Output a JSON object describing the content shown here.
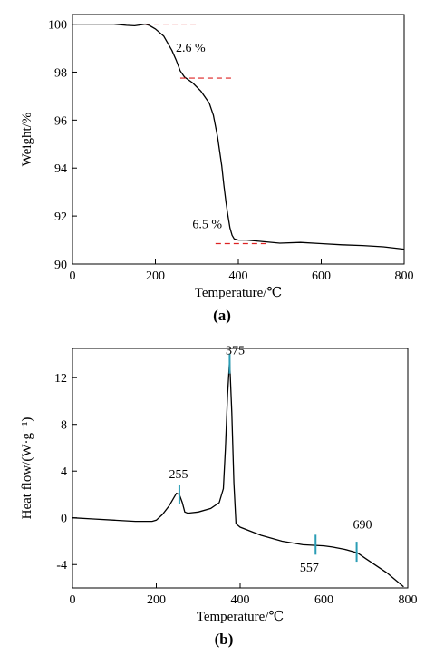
{
  "chart_data": [
    {
      "type": "line",
      "panel_label": "(a)",
      "xlabel": "Temperature/℃",
      "ylabel": "Weight/%",
      "xlim": [
        0,
        800
      ],
      "ylim": [
        90,
        100.4
      ],
      "xticks": [
        0,
        200,
        400,
        600,
        800
      ],
      "yticks": [
        90,
        92,
        94,
        96,
        98,
        100
      ],
      "grid": false,
      "line_color": "#000000",
      "series": [
        {
          "x": [
            0,
            50,
            100,
            130,
            150,
            165,
            175,
            185,
            200,
            220,
            240,
            250,
            260,
            270,
            290,
            310,
            330,
            340,
            350,
            360,
            365,
            370,
            375,
            380,
            385,
            390,
            400,
            420,
            450,
            500,
            550,
            600,
            650,
            700,
            750,
            800
          ],
          "y": [
            100,
            100,
            100,
            99.95,
            99.93,
            99.97,
            100,
            99.95,
            99.8,
            99.5,
            98.9,
            98.5,
            98.05,
            97.8,
            97.55,
            97.2,
            96.7,
            96.2,
            95.3,
            94.1,
            93.3,
            92.6,
            92.0,
            91.5,
            91.2,
            91.05,
            91.0,
            91.0,
            90.95,
            90.87,
            90.9,
            90.85,
            90.8,
            90.77,
            90.72,
            90.62
          ]
        }
      ],
      "markers": {
        "color": "#dd2222",
        "dashed_lines": [
          {
            "x1": 175,
            "x2": 300,
            "y": 100
          },
          {
            "x1": 260,
            "x2": 390,
            "y": 97.75
          },
          {
            "x1": 345,
            "x2": 470,
            "y": 90.85
          }
        ]
      },
      "annotations": [
        {
          "text": "2.6 %",
          "x": 285,
          "y": 98.85
        },
        {
          "text": "6.5 %",
          "x": 325,
          "y": 91.5
        }
      ]
    },
    {
      "type": "line",
      "panel_label": "(b)",
      "xlabel": "Temperature/℃",
      "ylabel": "Heat flow/(W·g⁻¹)",
      "xlim": [
        0,
        800
      ],
      "ylim": [
        -6,
        14.5
      ],
      "xticks": [
        0,
        200,
        400,
        600,
        800
      ],
      "yticks": [
        -4,
        0,
        4,
        8,
        12
      ],
      "grid": false,
      "line_color": "#000000",
      "series": [
        {
          "x": [
            0,
            50,
            100,
            150,
            190,
            200,
            215,
            230,
            240,
            248,
            255,
            262,
            268,
            275,
            300,
            330,
            350,
            360,
            365,
            370,
            375,
            380,
            385,
            390,
            400,
            450,
            500,
            550,
            600,
            620,
            650,
            680,
            700,
            750,
            790
          ],
          "y": [
            0,
            -0.1,
            -0.2,
            -0.3,
            -0.3,
            -0.2,
            0.3,
            1.0,
            1.6,
            2.1,
            2.0,
            1.3,
            0.5,
            0.4,
            0.5,
            0.8,
            1.3,
            2.5,
            6.0,
            10.5,
            13.5,
            9.0,
            3.0,
            -0.5,
            -0.8,
            -1.5,
            -2.0,
            -2.3,
            -2.4,
            -2.5,
            -2.7,
            -3.0,
            -3.5,
            -4.7,
            -5.9
          ]
        }
      ],
      "markers": {
        "color": "#2a9db5",
        "ticks": [
          {
            "x": 255,
            "y": 2.0
          },
          {
            "x": 375,
            "y": 13.2
          },
          {
            "x": 580,
            "y": -2.3
          },
          {
            "x": 678,
            "y": -2.9
          }
        ]
      },
      "annotations": [
        {
          "text": "255",
          "x": 253,
          "y": 3.4
        },
        {
          "text": "375",
          "x": 388,
          "y": 14.0
        },
        {
          "text": "557",
          "x": 565,
          "y": -4.6
        },
        {
          "text": "690",
          "x": 692,
          "y": -0.9
        }
      ]
    }
  ]
}
